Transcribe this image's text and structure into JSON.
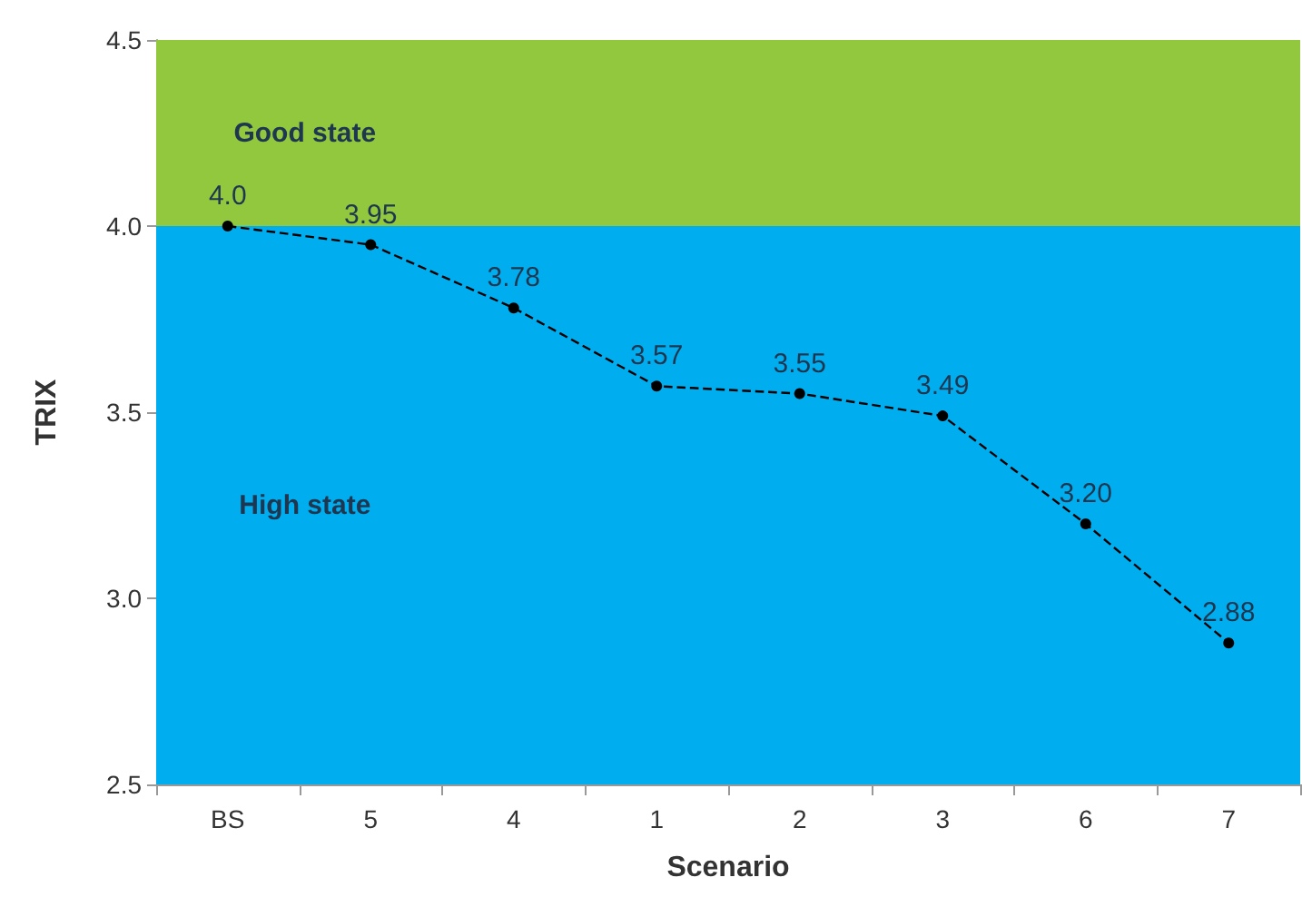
{
  "chart_data": {
    "type": "line",
    "xlabel": "Scenario",
    "ylabel": "TRIX",
    "categories": [
      "BS",
      "5",
      "4",
      "1",
      "2",
      "3",
      "6",
      "7"
    ],
    "series": [
      {
        "color": "#000000",
        "values": [
          4.0,
          3.95,
          3.78,
          3.57,
          3.55,
          3.49,
          3.2,
          2.88
        ],
        "value_labels": [
          "4.0",
          "3.95",
          "3.78",
          "3.57",
          "3.55",
          "3.49",
          "3.20",
          "2.88"
        ]
      }
    ],
    "ylim": [
      2.5,
      4.5
    ],
    "yticks": [
      "2.5",
      "3.0",
      "3.5",
      "4.0",
      "4.5"
    ],
    "bands": [
      {
        "axis": "y",
        "from": 4.0,
        "to": 4.5,
        "label": "Good state",
        "color": "#92c83e"
      },
      {
        "axis": "y",
        "from": 2.5,
        "to": 4.0,
        "label": "High state",
        "color": "#00aeef"
      }
    ],
    "marker": "circle",
    "line_style": "dashed",
    "grid": false
  }
}
